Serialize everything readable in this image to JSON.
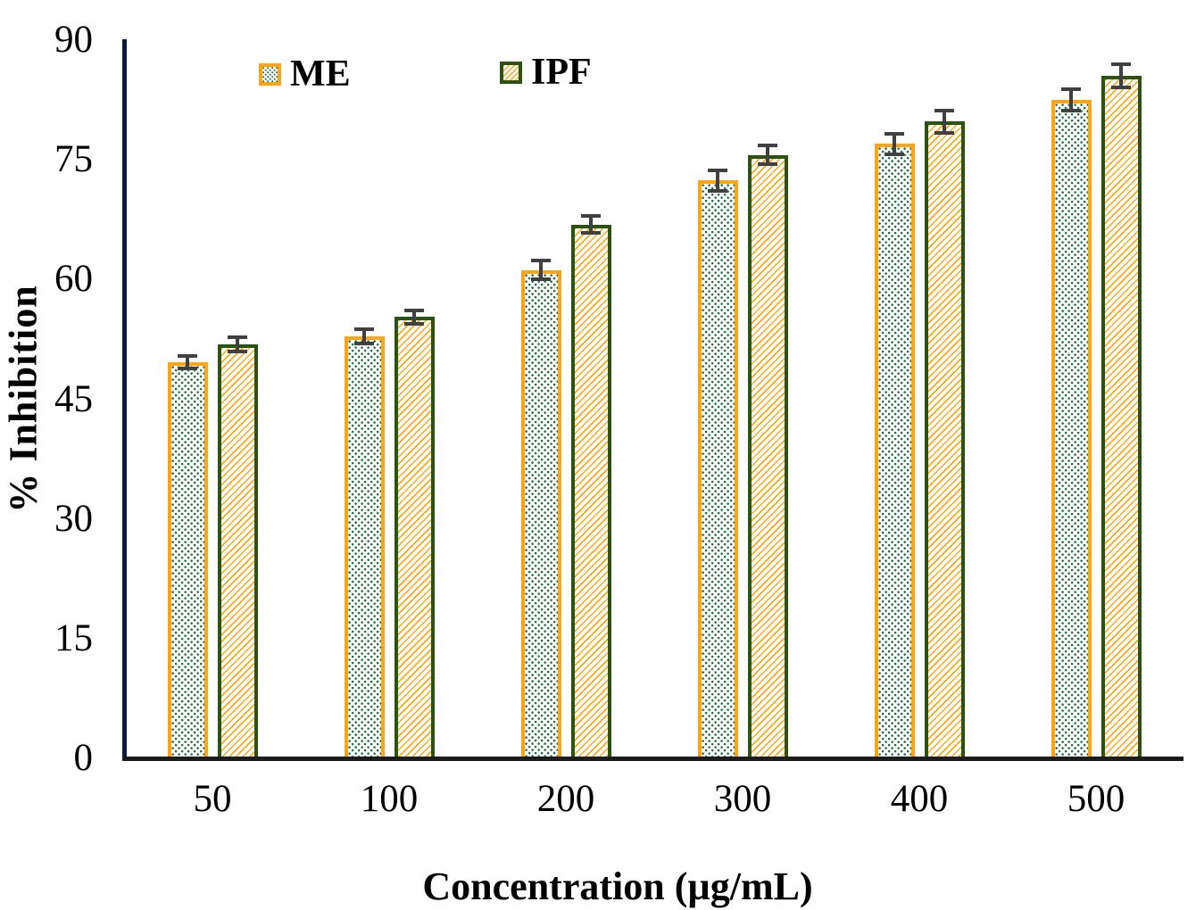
{
  "figure": {
    "background": "#FFFFFF"
  },
  "colors": {
    "me_border": "#FFA514",
    "me_dot": "#1E7145",
    "ipf_border": "#2C5210",
    "ipf_hatch": "#FCA819",
    "error_bar": "#404040",
    "y_axis_line": "#0B1A3C",
    "x_axis_line": "#1C1C1C",
    "text": "#000000",
    "background": "#FFFFFF"
  },
  "chart_data": {
    "type": "bar",
    "title": "",
    "xlabel": "Concentration (µg/mL)",
    "ylabel": "% Inhibition",
    "categories": [
      "50",
      "100",
      "200",
      "300",
      "400",
      "500"
    ],
    "series": [
      {
        "name": "ME",
        "values": [
          49.6,
          52.9,
          61.2,
          72.4,
          77.0,
          82.5
        ],
        "errors": [
          1.0,
          1.1,
          1.4,
          1.5,
          1.5,
          1.6
        ],
        "pattern": "green-dots-orange-border"
      },
      {
        "name": "IPF",
        "values": [
          51.9,
          55.3,
          66.9,
          75.6,
          79.8,
          85.5
        ],
        "errors": [
          1.1,
          1.1,
          1.3,
          1.4,
          1.6,
          1.7
        ],
        "pattern": "orange-diagonal-hatch-green-border"
      }
    ],
    "ylim": [
      0,
      90
    ],
    "yticks": [
      0,
      15,
      30,
      45,
      60,
      75,
      90
    ],
    "grid": false,
    "error_bars": true,
    "legend_position": "top-inside"
  }
}
